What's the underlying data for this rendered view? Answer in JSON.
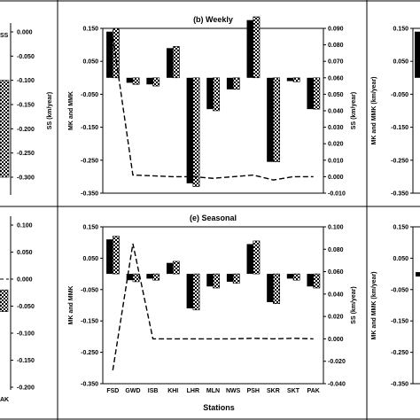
{
  "colors": {
    "bar": "#000000",
    "line": "#000000",
    "pattern": "#ffffff",
    "background": "#ffffff"
  },
  "stations": [
    "FSD",
    "GWD",
    "ISB",
    "KHI",
    "LHR",
    "MLN",
    "NWS",
    "PSH",
    "SKR",
    "SKT",
    "PAK"
  ],
  "xlabel": "Stations",
  "left_edge_labels": {
    "top_tick_fragment": "SS",
    "bottom_tick_fragment": "AK"
  },
  "chart_data": [
    {
      "type": "bar",
      "title": "(b) Weekly",
      "categories": [
        "FSD",
        "GWD",
        "ISB",
        "KHI",
        "LHR",
        "MLN",
        "NWS",
        "PSH",
        "SKR",
        "SKT",
        "PAK"
      ],
      "ylabel": "MK and MMK",
      "y2label": "SS (km/year)",
      "ylim": [
        -0.35,
        0.15
      ],
      "y2lim": [
        -0.01,
        0.09
      ],
      "yticks": [
        "0.150",
        "0.050",
        "-0.050",
        "-0.150",
        "-0.250",
        "-0.350"
      ],
      "y2ticks": [
        "0.090",
        "0.080",
        "0.070",
        "0.060",
        "0.050",
        "0.040",
        "0.030",
        "0.020",
        "0.010",
        "0.000",
        "-0.010"
      ],
      "series": [
        {
          "values": [
            0.14,
            -0.015,
            -0.02,
            0.09,
            -0.32,
            -0.095,
            -0.035,
            0.175,
            -0.255,
            -0.01,
            -0.095
          ]
        },
        {
          "values": [
            0.15,
            -0.02,
            -0.025,
            0.095,
            -0.33,
            -0.1,
            -0.035,
            0.185,
            -0.255,
            -0.012,
            -0.095
          ]
        },
        {
          "type": "line",
          "dashed": true,
          "axis": "secondary",
          "values": [
            0.085,
            0.001,
            0.0005,
            0.0,
            0.0,
            -0.001,
            0.0,
            0.001,
            -0.002,
            0.0,
            0.0
          ]
        }
      ]
    },
    {
      "type": "bar",
      "title": "(e) Seasonal",
      "categories": [
        "FSD",
        "GWD",
        "ISB",
        "KHI",
        "LHR",
        "MLN",
        "NWS",
        "PSH",
        "SKR",
        "SKT",
        "PAK"
      ],
      "xlabel": "Stations",
      "ylabel": "MK and MMK",
      "y2label": "SS (km/year)",
      "ylim": [
        -0.35,
        0.15
      ],
      "y2lim": [
        -0.04,
        0.1
      ],
      "yticks": [
        "0.150",
        "0.050",
        "-0.050",
        "-0.150",
        "-0.250",
        "-0.350"
      ],
      "y2ticks": [
        "0.100",
        "0.080",
        "0.060",
        "0.040",
        "0.020",
        "0.000",
        "-0.020",
        "-0.040"
      ],
      "series": [
        {
          "values": [
            0.11,
            -0.02,
            -0.015,
            0.035,
            -0.11,
            -0.04,
            -0.025,
            0.095,
            -0.09,
            -0.015,
            -0.04
          ]
        },
        {
          "values": [
            0.12,
            -0.025,
            -0.02,
            0.04,
            -0.115,
            -0.045,
            -0.03,
            0.105,
            -0.095,
            -0.02,
            -0.045
          ]
        },
        {
          "type": "line",
          "dashed": true,
          "axis": "secondary",
          "values": [
            -0.028,
            0.085,
            0.0,
            0.0,
            0.0,
            0.0,
            0.0,
            0.0005,
            0.0,
            0.0005,
            0.0
          ]
        }
      ]
    },
    {
      "type": "bar",
      "partial": "left-top",
      "y2label": "SS (km/year)",
      "y2ticks": [
        "0.000",
        "-0.050",
        "-0.100",
        "-0.150",
        "-0.200",
        "-0.250",
        "-0.300"
      ],
      "series": [
        {
          "values": [
            -0.3
          ]
        }
      ]
    },
    {
      "type": "bar",
      "partial": "left-bottom",
      "y2ticks": [
        "0.100",
        "0.050",
        "0.000",
        "-0.050",
        "-0.100",
        "-0.150",
        "-0.200"
      ],
      "series": [
        {
          "values": [
            -0.06
          ]
        }
      ]
    },
    {
      "type": "bar",
      "partial": "right-top",
      "ylabel": "MK and MMK (km/year)",
      "yticks": [
        "0.150",
        "0.050",
        "-0.050",
        "-0.150",
        "-0.250",
        "-0.350"
      ],
      "series": [
        {
          "values": [
            0.14
          ]
        }
      ]
    },
    {
      "type": "bar",
      "partial": "right-bottom",
      "ylabel": "MK and MMK (km/year)",
      "yticks": [
        "0.150",
        "0.050",
        "-0.050",
        "-0.150",
        "-0.250",
        "-0.350"
      ],
      "series": [
        {
          "values": [
            -0.005
          ]
        }
      ]
    }
  ]
}
